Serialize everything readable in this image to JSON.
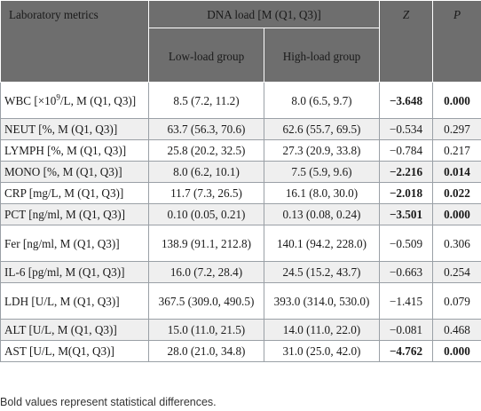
{
  "header": {
    "metric_col": "Laboratory metrics",
    "group_col": "DNA load [M (Q1, Q3)]",
    "z_col": "Z",
    "p_col": "P",
    "low_group": "Low-load group",
    "high_group": "High-load group"
  },
  "rows": [
    {
      "metric_pre": "WBC [×10",
      "metric_sup": "9",
      "metric_post": "/L, M (Q1, Q3)]",
      "low": "8.5 (7.2, 11.2)",
      "high": "8.0 (6.5, 9.7)",
      "z": "−3.648",
      "p": "0.000",
      "bold": true
    },
    {
      "metric_pre": "NEUT [%, M (Q1, Q3)]",
      "metric_sup": "",
      "metric_post": "",
      "low": "63.7 (56.3, 70.6)",
      "high": "62.6 (55.7, 69.5)",
      "z": "−0.534",
      "p": "0.297",
      "bold": false
    },
    {
      "metric_pre": "LYMPH [%, M (Q1, Q3)]",
      "metric_sup": "",
      "metric_post": "",
      "low": "25.8 (20.2, 32.5)",
      "high": "27.3 (20.9, 33.8)",
      "z": "−0.784",
      "p": "0.217",
      "bold": false
    },
    {
      "metric_pre": "MONO [%, M (Q1, Q3)]",
      "metric_sup": "",
      "metric_post": "",
      "low": "8.0 (6.2, 10.1)",
      "high": "7.5 (5.9, 9.6)",
      "z": "−2.216",
      "p": "0.014",
      "bold": true
    },
    {
      "metric_pre": "CRP [mg/L, M (Q1, Q3)]",
      "metric_sup": "",
      "metric_post": "",
      "low": "11.7 (7.3, 26.5)",
      "high": "16.1 (8.0, 30.0)",
      "z": "−2.018",
      "p": "0.022",
      "bold": true
    },
    {
      "metric_pre": "PCT [ng/ml, M (Q1, Q3)]",
      "metric_sup": "",
      "metric_post": "",
      "low": "0.10 (0.05, 0.21)",
      "high": "0.13 (0.08, 0.24)",
      "z": "−3.501",
      "p": "0.000",
      "bold": true
    },
    {
      "metric_pre": "Fer [ng/ml, M (Q1, Q3)]",
      "metric_sup": "",
      "metric_post": "",
      "low": "138.9 (91.1, 212.8)",
      "high": "140.1 (94.2, 228.0)",
      "z": "−0.509",
      "p": "0.306",
      "bold": false
    },
    {
      "metric_pre": "IL-6 [pg/ml, M (Q1, Q3)]",
      "metric_sup": "",
      "metric_post": "",
      "low": "16.0 (7.2, 28.4)",
      "high": "24.5 (15.2, 43.7)",
      "z": "−0.663",
      "p": "0.254",
      "bold": false
    },
    {
      "metric_pre": "LDH [U/L, M (Q1, Q3)]",
      "metric_sup": "",
      "metric_post": "",
      "low": "367.5 (309.0, 490.5)",
      "high": "393.0 (314.0, 530.0)",
      "z": "−1.415",
      "p": "0.079",
      "bold": false
    },
    {
      "metric_pre": "ALT [U/L, M (Q1, Q3)]",
      "metric_sup": "",
      "metric_post": "",
      "low": "15.0 (11.0, 21.5)",
      "high": "14.0 (11.0, 22.0)",
      "z": "−0.081",
      "p": "0.468",
      "bold": false
    },
    {
      "metric_pre": "AST [U/L, M(Q1, Q3)]",
      "metric_sup": "",
      "metric_post": "",
      "low": "28.0 (21.0, 34.8)",
      "high": "31.0 (25.0, 42.0)",
      "z": "−4.762",
      "p": "0.000",
      "bold": true
    }
  ],
  "footnote": "Bold values represent statistical differences."
}
